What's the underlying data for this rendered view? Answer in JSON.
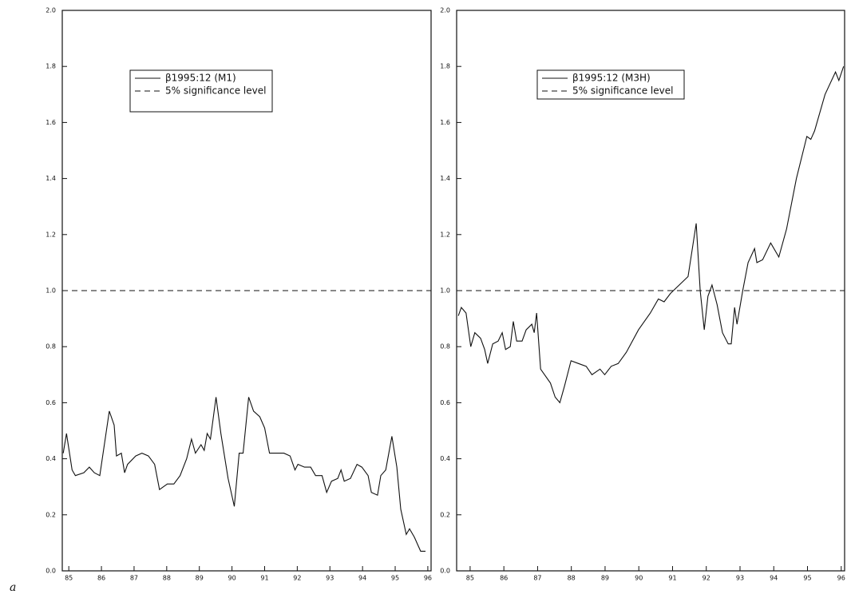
{
  "figure_label": "a",
  "chart_data": [
    {
      "type": "line",
      "xlim": [
        84.8,
        96.1
      ],
      "xticks": [
        85,
        86,
        87,
        88,
        89,
        90,
        91,
        92,
        93,
        94,
        95,
        96
      ],
      "ylim": [
        0,
        2
      ],
      "yticks": [
        {
          "value": 0,
          "label": "0.0"
        },
        {
          "value": 0.2,
          "label": "0.2"
        },
        {
          "value": 0.4,
          "label": "0.4"
        },
        {
          "value": 0.6,
          "label": "0.6"
        },
        {
          "value": 0.8,
          "label": "0.8"
        },
        {
          "value": 1,
          "label": "1.0"
        },
        {
          "value": 1.2,
          "label": "1.2"
        },
        {
          "value": 1.4,
          "label": "1.4"
        },
        {
          "value": 1.6,
          "label": "1.6"
        },
        {
          "value": 1.8,
          "label": "1.8"
        },
        {
          "value": 2,
          "label": "2.0"
        }
      ],
      "series": [
        {
          "name": "β1995:12 (M1)",
          "color": "#111111",
          "dash": false,
          "x": [
            84.83,
            84.93,
            85.1,
            85.2,
            85.46,
            85.63,
            85.78,
            85.95,
            86.24,
            86.39,
            86.46,
            86.61,
            86.71,
            86.8,
            87.05,
            87.24,
            87.44,
            87.63,
            87.78,
            88.02,
            88.22,
            88.41,
            88.61,
            88.76,
            88.88,
            89.05,
            89.15,
            89.24,
            89.34,
            89.51,
            89.66,
            89.88,
            90.07,
            90.22,
            90.34,
            90.51,
            90.66,
            90.85,
            91.0,
            91.15,
            91.39,
            91.59,
            91.78,
            91.93,
            92.02,
            92.22,
            92.41,
            92.56,
            92.76,
            92.9,
            93.05,
            93.24,
            93.34,
            93.44,
            93.63,
            93.83,
            93.98,
            94.17,
            94.27,
            94.46,
            94.56,
            94.71,
            94.9,
            95.05,
            95.17,
            95.34,
            95.44,
            95.59,
            95.78,
            95.93
          ],
          "values": [
            0.42,
            0.49,
            0.36,
            0.34,
            0.35,
            0.37,
            0.35,
            0.34,
            0.57,
            0.52,
            0.41,
            0.42,
            0.35,
            0.38,
            0.41,
            0.42,
            0.41,
            0.38,
            0.29,
            0.31,
            0.31,
            0.34,
            0.4,
            0.47,
            0.42,
            0.45,
            0.43,
            0.49,
            0.47,
            0.62,
            0.49,
            0.33,
            0.23,
            0.42,
            0.42,
            0.62,
            0.57,
            0.55,
            0.51,
            0.42,
            0.42,
            0.42,
            0.41,
            0.36,
            0.38,
            0.37,
            0.37,
            0.34,
            0.34,
            0.28,
            0.32,
            0.33,
            0.36,
            0.32,
            0.33,
            0.38,
            0.37,
            0.34,
            0.28,
            0.27,
            0.34,
            0.36,
            0.48,
            0.37,
            0.22,
            0.13,
            0.15,
            0.12,
            0.07,
            0.07
          ]
        },
        {
          "name": "5% significance level",
          "color": "#111111",
          "dash": true,
          "x": [
            84.8,
            96.1
          ],
          "values": [
            1,
            1
          ]
        }
      ]
    },
    {
      "type": "line",
      "xlim": [
        84.6,
        96.1
      ],
      "xticks": [
        85,
        86,
        87,
        88,
        89,
        90,
        91,
        92,
        93,
        94,
        95,
        96
      ],
      "ylim": [
        0,
        2
      ],
      "yticks": [
        {
          "value": 0,
          "label": "0.0"
        },
        {
          "value": 0.2,
          "label": "0.2"
        },
        {
          "value": 0.4,
          "label": "0.4"
        },
        {
          "value": 0.6,
          "label": "0.6"
        },
        {
          "value": 0.8,
          "label": "0.8"
        },
        {
          "value": 1,
          "label": "1.0"
        },
        {
          "value": 1.2,
          "label": "1.2"
        },
        {
          "value": 1.4,
          "label": "1.4"
        },
        {
          "value": 1.6,
          "label": "1.6"
        },
        {
          "value": 1.8,
          "label": "1.8"
        },
        {
          "value": 2,
          "label": "2.0"
        }
      ],
      "series": [
        {
          "name": "β1995:12 (M3H)",
          "color": "#111111",
          "dash": false,
          "x": [
            84.65,
            84.74,
            84.88,
            85.02,
            85.14,
            85.31,
            85.43,
            85.52,
            85.67,
            85.83,
            85.95,
            86.05,
            86.19,
            86.28,
            86.38,
            86.54,
            86.66,
            86.83,
            86.9,
            86.97,
            87.09,
            87.38,
            87.52,
            87.66,
            87.8,
            87.99,
            88.21,
            88.44,
            88.61,
            88.85,
            88.99,
            89.18,
            89.39,
            89.63,
            89.99,
            90.34,
            90.58,
            90.75,
            90.94,
            91.46,
            91.7,
            91.82,
            91.94,
            92.05,
            92.17,
            92.32,
            92.48,
            92.65,
            92.74,
            92.84,
            92.91,
            93.08,
            93.24,
            93.43,
            93.5,
            93.67,
            93.91,
            94.15,
            94.38,
            94.67,
            94.98,
            95.1,
            95.21,
            95.52,
            95.83,
            95.93,
            96.07
          ],
          "values": [
            0.91,
            0.94,
            0.92,
            0.8,
            0.85,
            0.83,
            0.79,
            0.74,
            0.81,
            0.82,
            0.85,
            0.79,
            0.8,
            0.89,
            0.82,
            0.82,
            0.86,
            0.88,
            0.85,
            0.92,
            0.72,
            0.67,
            0.62,
            0.6,
            0.66,
            0.75,
            0.74,
            0.73,
            0.7,
            0.72,
            0.7,
            0.73,
            0.74,
            0.78,
            0.86,
            0.92,
            0.97,
            0.96,
            0.99,
            1.05,
            1.24,
            1.0,
            0.86,
            0.98,
            1.02,
            0.95,
            0.85,
            0.81,
            0.81,
            0.94,
            0.88,
            1.0,
            1.1,
            1.15,
            1.1,
            1.11,
            1.17,
            1.12,
            1.22,
            1.4,
            1.55,
            1.54,
            1.57,
            1.7,
            1.78,
            1.75,
            1.8
          ]
        },
        {
          "name": "5% significance level",
          "color": "#111111",
          "dash": true,
          "x": [
            84.6,
            96.1
          ],
          "values": [
            1,
            1
          ]
        }
      ]
    }
  ]
}
